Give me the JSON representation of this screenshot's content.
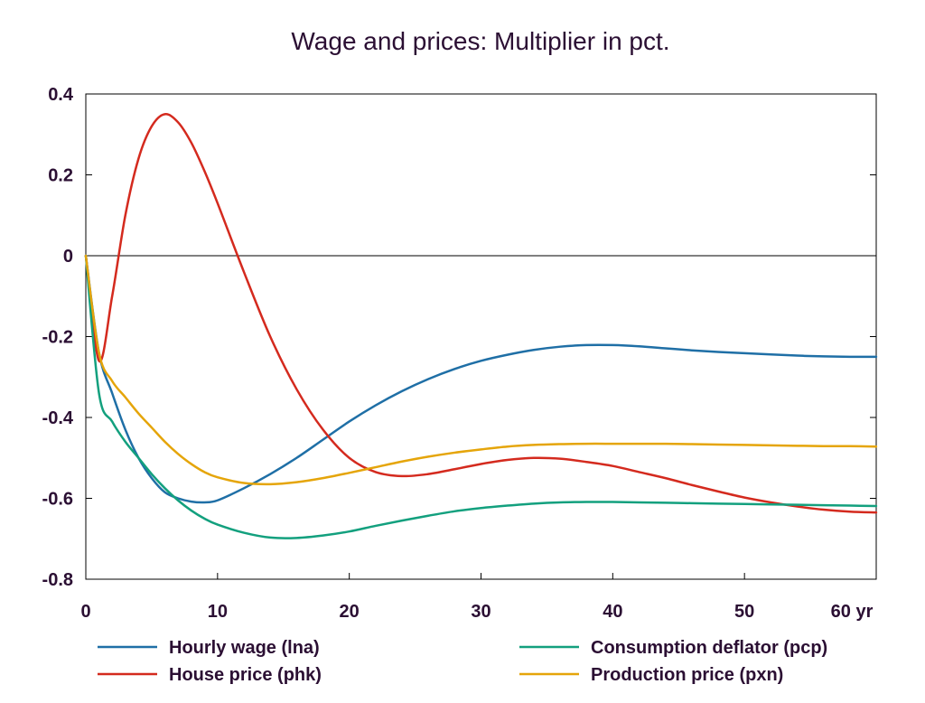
{
  "chart_data": {
    "type": "line",
    "title": "Wage and prices: Multiplier in pct.",
    "xlabel": "",
    "ylabel": "",
    "xlim": [
      0,
      60
    ],
    "ylim": [
      -0.8,
      0.4
    ],
    "x_ticks": [
      0,
      10,
      20,
      30,
      40,
      50,
      60
    ],
    "x_tick_labels": [
      "0",
      "10",
      "20",
      "30",
      "40",
      "50",
      "60 yr"
    ],
    "y_ticks": [
      0.4,
      0.2,
      0,
      -0.2,
      -0.4,
      -0.6,
      -0.8
    ],
    "y_tick_labels": [
      "0.4",
      "0.2",
      "0",
      "-0.2",
      "-0.4",
      "-0.6",
      "-0.8"
    ],
    "grid": false,
    "zero_line": true,
    "legend_position": "bottom",
    "x": [
      0,
      1,
      2,
      3,
      4,
      5,
      6,
      7,
      8,
      9,
      10,
      12,
      14,
      16,
      18,
      20,
      22,
      24,
      26,
      28,
      30,
      32,
      34,
      36,
      38,
      40,
      42,
      44,
      46,
      48,
      50,
      52,
      54,
      56,
      58,
      60
    ],
    "series": [
      {
        "name": "Hourly wage (lna)",
        "color": "#1f6fa6",
        "values": [
          0,
          -0.24,
          -0.34,
          -0.43,
          -0.5,
          -0.55,
          -0.585,
          -0.6,
          -0.608,
          -0.61,
          -0.605,
          -0.575,
          -0.54,
          -0.5,
          -0.455,
          -0.41,
          -0.37,
          -0.335,
          -0.305,
          -0.28,
          -0.26,
          -0.245,
          -0.233,
          -0.225,
          -0.221,
          -0.221,
          -0.224,
          -0.229,
          -0.234,
          -0.238,
          -0.241,
          -0.244,
          -0.247,
          -0.249,
          -0.25,
          -0.25
        ]
      },
      {
        "name": "House price (phk)",
        "color": "#d42a1e",
        "values": [
          0,
          -0.26,
          -0.1,
          0.1,
          0.24,
          0.32,
          0.35,
          0.33,
          0.28,
          0.21,
          0.13,
          -0.04,
          -0.2,
          -0.33,
          -0.43,
          -0.5,
          -0.535,
          -0.545,
          -0.54,
          -0.528,
          -0.515,
          -0.505,
          -0.5,
          -0.502,
          -0.51,
          -0.52,
          -0.535,
          -0.55,
          -0.567,
          -0.583,
          -0.598,
          -0.61,
          -0.62,
          -0.628,
          -0.633,
          -0.635
        ]
      },
      {
        "name": "Consumption deflator (pcp)",
        "color": "#13a07e",
        "values": [
          0,
          -0.34,
          -0.41,
          -0.46,
          -0.5,
          -0.54,
          -0.575,
          -0.605,
          -0.63,
          -0.65,
          -0.665,
          -0.685,
          -0.697,
          -0.698,
          -0.692,
          -0.682,
          -0.668,
          -0.655,
          -0.643,
          -0.632,
          -0.624,
          -0.618,
          -0.613,
          -0.61,
          -0.609,
          -0.609,
          -0.61,
          -0.611,
          -0.612,
          -0.613,
          -0.614,
          -0.615,
          -0.616,
          -0.617,
          -0.618,
          -0.619
        ]
      },
      {
        "name": "Production price (pxn)",
        "color": "#e5a50a",
        "values": [
          0,
          -0.24,
          -0.31,
          -0.35,
          -0.39,
          -0.425,
          -0.46,
          -0.49,
          -0.515,
          -0.535,
          -0.548,
          -0.562,
          -0.565,
          -0.56,
          -0.55,
          -0.537,
          -0.523,
          -0.509,
          -0.497,
          -0.487,
          -0.479,
          -0.472,
          -0.468,
          -0.466,
          -0.465,
          -0.465,
          -0.465,
          -0.465,
          -0.466,
          -0.467,
          -0.468,
          -0.469,
          -0.47,
          -0.471,
          -0.471,
          -0.472
        ]
      }
    ]
  }
}
